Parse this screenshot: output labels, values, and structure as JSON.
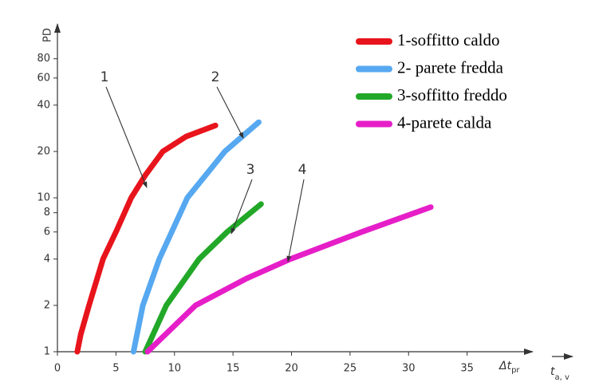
{
  "chart_data": {
    "type": "line",
    "y_label": "PD",
    "x_label": {
      "main": "Δt",
      "sub": "pr"
    },
    "x_unit_label": {
      "main": "t",
      "sub": "a, v"
    },
    "log_y": true,
    "xlim": [
      0,
      40
    ],
    "ylim": [
      1,
      100
    ],
    "xticks": [
      0,
      5,
      10,
      15,
      20,
      25,
      30,
      35
    ],
    "yticks": [
      1,
      2,
      4,
      6,
      8,
      10,
      20,
      40,
      60,
      80
    ],
    "series": [
      {
        "name": "1-soffitto caldo",
        "color": "#e8141c",
        "x": [
          1.7,
          2.0,
          2.7,
          3.9,
          5,
          6.3,
          7.5,
          9,
          11,
          13.5
        ],
        "values": [
          1,
          1.3,
          2,
          4,
          6,
          10,
          14,
          20,
          25,
          29.5
        ]
      },
      {
        "name": "2- parete fredda",
        "color": "#56a8f0",
        "x": [
          6.5,
          7.3,
          8.7,
          11.1,
          14.3,
          17.2
        ],
        "values": [
          1,
          2,
          4,
          10,
          20,
          31
        ]
      },
      {
        "name": "3-soffitto freddo",
        "color": "#22a828",
        "x": [
          7.5,
          9.3,
          12.1,
          14.5,
          17.4
        ],
        "values": [
          1,
          2,
          4,
          6,
          9.1
        ]
      },
      {
        "name": "4-parete calda",
        "color": "#e61ec8",
        "x": [
          7.7,
          11.8,
          16.2,
          19.9,
          26,
          31.9
        ],
        "values": [
          1,
          2,
          3,
          4,
          6,
          8.7
        ]
      }
    ],
    "annotations": [
      "1",
      "2",
      "3",
      "4"
    ]
  }
}
